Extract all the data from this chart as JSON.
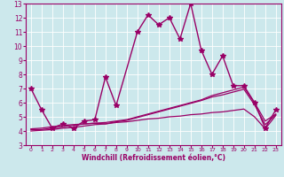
{
  "title": "",
  "xlabel": "Windchill (Refroidissement éolien,°C)",
  "xlim": [
    -0.5,
    23.5
  ],
  "ylim": [
    3,
    13
  ],
  "yticks": [
    3,
    4,
    5,
    6,
    7,
    8,
    9,
    10,
    11,
    12,
    13
  ],
  "xticks": [
    0,
    1,
    2,
    3,
    4,
    5,
    6,
    7,
    8,
    9,
    10,
    11,
    12,
    13,
    14,
    15,
    16,
    17,
    18,
    19,
    20,
    21,
    22,
    23
  ],
  "bg_color": "#cce8ec",
  "grid_color": "#ffffff",
  "line_color": "#990066",
  "series": [
    {
      "x": [
        0,
        1,
        2,
        3,
        4,
        5,
        6,
        7,
        8,
        10,
        11,
        12,
        13,
        14,
        15,
        16,
        17,
        18,
        19,
        20,
        21,
        22,
        23
      ],
      "y": [
        7.0,
        5.5,
        4.2,
        4.5,
        4.2,
        4.7,
        4.8,
        7.8,
        5.8,
        11.0,
        12.2,
        11.5,
        12.0,
        10.5,
        13.0,
        9.7,
        8.0,
        9.3,
        7.2,
        7.2,
        6.0,
        4.2,
        5.5
      ],
      "marker": "*",
      "markersize": 4,
      "linewidth": 1.0
    },
    {
      "x": [
        0,
        1,
        2,
        3,
        4,
        5,
        6,
        7,
        8,
        9,
        10,
        11,
        12,
        13,
        14,
        15,
        16,
        17,
        18,
        19,
        20,
        21,
        22,
        23
      ],
      "y": [
        4.0,
        4.05,
        4.1,
        4.2,
        4.25,
        4.35,
        4.45,
        4.5,
        4.6,
        4.65,
        4.75,
        4.85,
        4.9,
        5.0,
        5.05,
        5.15,
        5.2,
        5.3,
        5.35,
        5.45,
        5.55,
        5.0,
        4.15,
        5.1
      ],
      "marker": null,
      "markersize": 2,
      "linewidth": 0.9
    },
    {
      "x": [
        0,
        1,
        2,
        3,
        4,
        5,
        6,
        7,
        8,
        9,
        10,
        11,
        12,
        13,
        14,
        15,
        16,
        17,
        18,
        19,
        20,
        21,
        22,
        23
      ],
      "y": [
        4.1,
        4.1,
        4.2,
        4.3,
        4.4,
        4.5,
        4.55,
        4.6,
        4.7,
        4.8,
        5.0,
        5.2,
        5.4,
        5.6,
        5.8,
        6.0,
        6.2,
        6.5,
        6.7,
        6.9,
        7.1,
        6.0,
        4.7,
        5.2
      ],
      "marker": null,
      "markersize": 2,
      "linewidth": 0.9
    },
    {
      "x": [
        0,
        1,
        2,
        3,
        4,
        5,
        6,
        7,
        8,
        9,
        10,
        11,
        12,
        13,
        14,
        15,
        16,
        17,
        18,
        19,
        20,
        21,
        22,
        23
      ],
      "y": [
        4.15,
        4.2,
        4.3,
        4.4,
        4.45,
        4.5,
        4.55,
        4.5,
        4.65,
        4.75,
        4.95,
        5.15,
        5.35,
        5.55,
        5.75,
        5.95,
        6.15,
        6.4,
        6.55,
        6.75,
        6.95,
        5.85,
        4.45,
        5.15
      ],
      "marker": null,
      "markersize": 2,
      "linewidth": 0.9
    }
  ]
}
